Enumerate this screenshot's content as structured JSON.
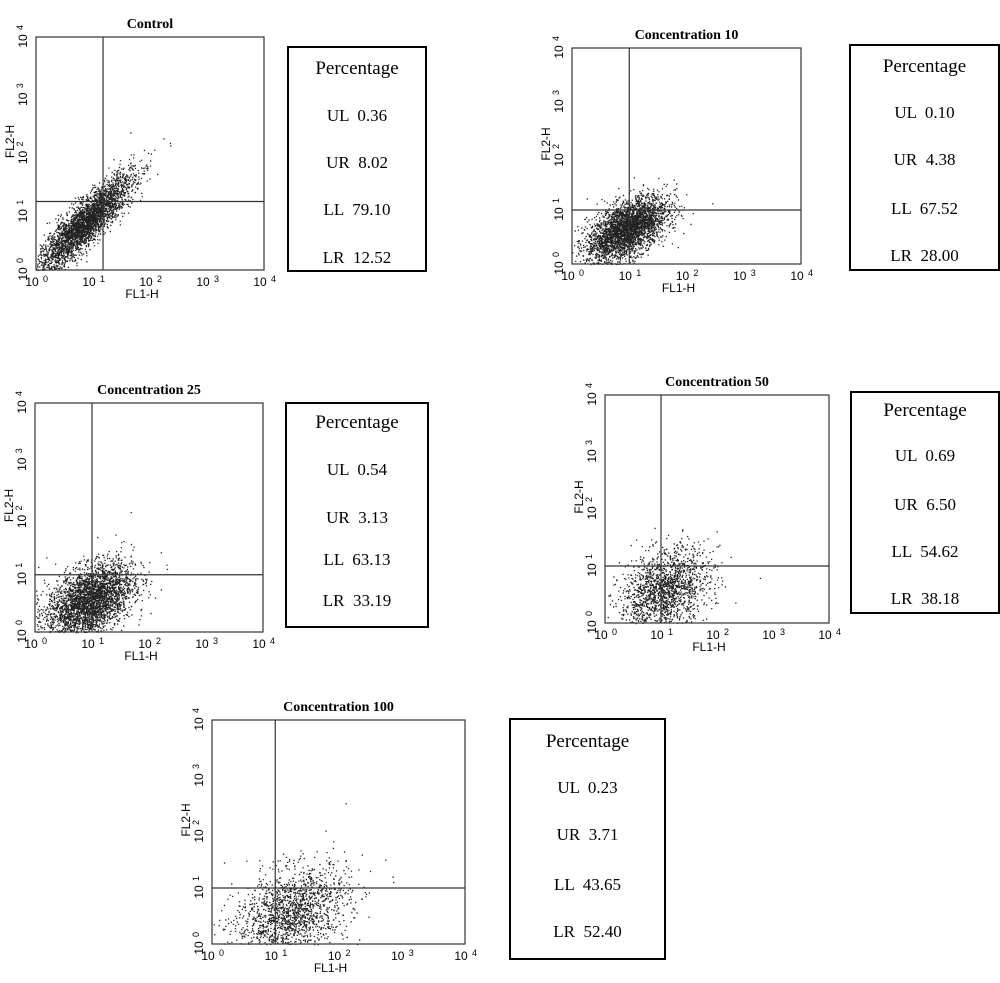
{
  "chart_data": [
    {
      "type": "scatter",
      "title": "Control",
      "xlabel": "FL1-H",
      "ylabel": "FL2-H",
      "xscale": "log",
      "yscale": "log",
      "xlim": [
        1,
        10000
      ],
      "ylim": [
        1,
        10000
      ],
      "x_ticks": [
        "10",
        "10",
        "10",
        "10",
        "10"
      ],
      "x_tick_exps": [
        "0",
        "1",
        "2",
        "3",
        "4"
      ],
      "y_ticks": [
        "10",
        "10",
        "10",
        "10",
        "10"
      ],
      "y_tick_exps": [
        "0",
        "1",
        "2",
        "3",
        "4"
      ],
      "quadrant_gate": {
        "x": 15,
        "y": 15
      },
      "point_density": "high",
      "table_header": "Percentage",
      "quadrants": [
        {
          "label": "UL",
          "value": "0.36"
        },
        {
          "label": "UR",
          "value": "8.02"
        },
        {
          "label": "LL",
          "value": "79.10"
        },
        {
          "label": "LR",
          "value": "12.52"
        }
      ]
    },
    {
      "type": "scatter",
      "title": "Concentration 10",
      "xlabel": "FL1-H",
      "ylabel": "FL2-H",
      "xscale": "log",
      "yscale": "log",
      "xlim": [
        1,
        10000
      ],
      "ylim": [
        1,
        10000
      ],
      "x_ticks": [
        "10",
        "10",
        "10",
        "10",
        "10"
      ],
      "x_tick_exps": [
        "0",
        "1",
        "2",
        "3",
        "4"
      ],
      "y_ticks": [
        "10",
        "10",
        "10",
        "10",
        "10"
      ],
      "y_tick_exps": [
        "0",
        "1",
        "2",
        "3",
        "4"
      ],
      "quadrant_gate": {
        "x": 10,
        "y": 10
      },
      "point_density": "high",
      "table_header": "Percentage",
      "quadrants": [
        {
          "label": "UL",
          "value": "0.10"
        },
        {
          "label": "UR",
          "value": "4.38"
        },
        {
          "label": "LL",
          "value": "67.52"
        },
        {
          "label": "LR",
          "value": "28.00"
        }
      ]
    },
    {
      "type": "scatter",
      "title": "Concentration 25",
      "xlabel": "FL1-H",
      "ylabel": "FL2-H",
      "xscale": "log",
      "yscale": "log",
      "xlim": [
        1,
        10000
      ],
      "ylim": [
        1,
        10000
      ],
      "x_ticks": [
        "10",
        "10",
        "10",
        "10",
        "10"
      ],
      "x_tick_exps": [
        "0",
        "1",
        "2",
        "3",
        "4"
      ],
      "y_ticks": [
        "10",
        "10",
        "10",
        "10",
        "10"
      ],
      "y_tick_exps": [
        "0",
        "1",
        "2",
        "3",
        "4"
      ],
      "quadrant_gate": {
        "x": 10,
        "y": 10
      },
      "point_density": "high",
      "table_header": "Percentage",
      "quadrants": [
        {
          "label": "UL",
          "value": "0.54"
        },
        {
          "label": "UR",
          "value": "3.13"
        },
        {
          "label": "LL",
          "value": "63.13"
        },
        {
          "label": "LR",
          "value": "33.19"
        }
      ]
    },
    {
      "type": "scatter",
      "title": "Concentration 50",
      "xlabel": "FL1-H",
      "ylabel": "FL2-H",
      "xscale": "log",
      "yscale": "log",
      "xlim": [
        1,
        10000
      ],
      "ylim": [
        1,
        10000
      ],
      "x_ticks": [
        "10",
        "10",
        "10",
        "10",
        "10"
      ],
      "x_tick_exps": [
        "0",
        "1",
        "2",
        "3",
        "4"
      ],
      "y_ticks": [
        "10",
        "10",
        "10",
        "10",
        "10"
      ],
      "y_tick_exps": [
        "0",
        "1",
        "2",
        "3",
        "4"
      ],
      "quadrant_gate": {
        "x": 10,
        "y": 10
      },
      "point_density": "medium",
      "table_header": "Percentage",
      "quadrants": [
        {
          "label": "UL",
          "value": "0.69"
        },
        {
          "label": "UR",
          "value": "6.50"
        },
        {
          "label": "LL",
          "value": "54.62"
        },
        {
          "label": "LR",
          "value": "38.18"
        }
      ]
    },
    {
      "type": "scatter",
      "title": "Concentration 100",
      "xlabel": "FL1-H",
      "ylabel": "FL2-H",
      "xscale": "log",
      "yscale": "log",
      "xlim": [
        1,
        10000
      ],
      "ylim": [
        1,
        10000
      ],
      "x_ticks": [
        "10",
        "10",
        "10",
        "10",
        "10"
      ],
      "x_tick_exps": [
        "0",
        "1",
        "2",
        "3",
        "4"
      ],
      "y_ticks": [
        "10",
        "10",
        "10",
        "10",
        "10"
      ],
      "y_tick_exps": [
        "0",
        "1",
        "2",
        "3",
        "4"
      ],
      "quadrant_gate": {
        "x": 10,
        "y": 10
      },
      "point_density": "medium",
      "table_header": "Percentage",
      "quadrants": [
        {
          "label": "UL",
          "value": "0.23"
        },
        {
          "label": "UR",
          "value": "3.71"
        },
        {
          "label": "LL",
          "value": "43.65"
        },
        {
          "label": "LR",
          "value": "52.40"
        }
      ]
    }
  ]
}
